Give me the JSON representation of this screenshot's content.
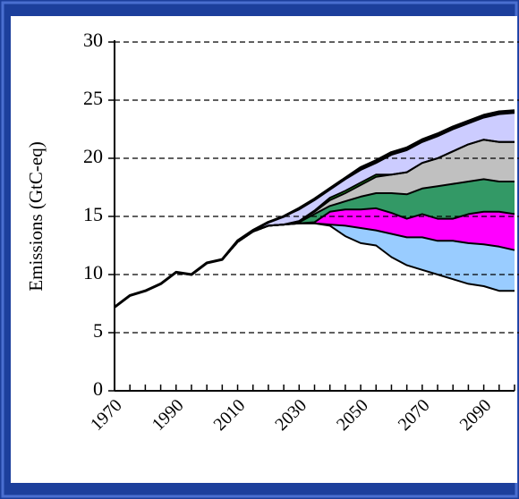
{
  "chart_data": {
    "type": "stacked_area",
    "ylabel": "Emissions (GtC-eq)",
    "x": [
      1970,
      1975,
      1980,
      1985,
      1990,
      1995,
      2000,
      2005,
      2010,
      2015,
      2020,
      2025,
      2030,
      2035,
      2040,
      2045,
      2050,
      2055,
      2060,
      2065,
      2070,
      2075,
      2080,
      2085,
      2090,
      2095,
      2100
    ],
    "series": [
      {
        "color": "#ffffff",
        "values": [
          7.2,
          8.2,
          8.6,
          9.2,
          10.2,
          10.0,
          11.0,
          11.3,
          12.8,
          13.7,
          14.2,
          14.3,
          14.4,
          14.4,
          14.2,
          13.3,
          12.7,
          12.5,
          11.5,
          10.8,
          10.4,
          10.0,
          9.6,
          9.2,
          9.0,
          8.6,
          8.6
        ]
      },
      {
        "color": "#99ccff",
        "values": [
          0,
          0,
          0,
          0,
          0,
          0,
          0,
          0,
          0,
          0,
          0,
          0,
          0,
          0,
          0.1,
          0.9,
          1.3,
          1.3,
          2.0,
          2.4,
          2.8,
          2.9,
          3.3,
          3.5,
          3.6,
          3.8,
          3.5
        ]
      },
      {
        "color": "#ff00ff",
        "values": [
          0,
          0,
          0,
          0,
          0,
          0,
          0,
          0,
          0,
          0,
          0,
          0,
          0,
          0.1,
          1.1,
          1.4,
          1.6,
          1.9,
          1.8,
          1.6,
          2.0,
          1.9,
          1.9,
          2.5,
          2.8,
          3.0,
          3.1
        ]
      },
      {
        "color": "#339966",
        "values": [
          0,
          0,
          0,
          0,
          0,
          0,
          0,
          0,
          0,
          0,
          0,
          0,
          0.1,
          0.7,
          0.5,
          0.7,
          1.1,
          1.3,
          1.7,
          2.1,
          2.2,
          2.8,
          3.0,
          2.8,
          2.8,
          2.6,
          2.8
        ]
      },
      {
        "color": "#c0c0c0",
        "values": [
          0,
          0,
          0,
          0,
          0,
          0,
          0,
          0,
          0,
          0,
          0,
          0,
          0.1,
          0.2,
          0.5,
          0.7,
          1.0,
          1.4,
          1.6,
          1.9,
          2.2,
          2.4,
          2.8,
          3.2,
          3.4,
          3.4,
          3.4
        ]
      },
      {
        "color": "#33ff33",
        "values": [
          0,
          0,
          0,
          0,
          0,
          0,
          0,
          0,
          0,
          0,
          0,
          0,
          0,
          0.1,
          0.2,
          0.2,
          0.2,
          0.2,
          0,
          0,
          0,
          0,
          0,
          0,
          0,
          0,
          0
        ]
      },
      {
        "color": "#ccccff",
        "values": [
          0,
          0,
          0,
          0,
          0,
          0,
          0,
          0,
          0.1,
          0.1,
          0.3,
          0.7,
          1.0,
          0.9,
          0.7,
          1.0,
          1.1,
          1.0,
          1.7,
          1.9,
          1.8,
          1.9,
          1.9,
          1.8,
          1.9,
          2.4,
          2.5
        ]
      },
      {
        "color": "#000080",
        "values": [
          0,
          0,
          0,
          0,
          0,
          0,
          0,
          0,
          0,
          0,
          0,
          0,
          0.1,
          0.1,
          0.1,
          0.1,
          0.2,
          0.2,
          0.2,
          0.2,
          0.2,
          0.2,
          0.2,
          0.2,
          0.2,
          0.2,
          0.2
        ]
      }
    ],
    "xlim": [
      1970,
      2100
    ],
    "xticks": [
      1970,
      1990,
      2010,
      2030,
      2050,
      2070,
      2090
    ],
    "ylim": [
      0,
      30
    ],
    "yticks": [
      0,
      5,
      10,
      15,
      20,
      25,
      30
    ],
    "grid": true
  }
}
